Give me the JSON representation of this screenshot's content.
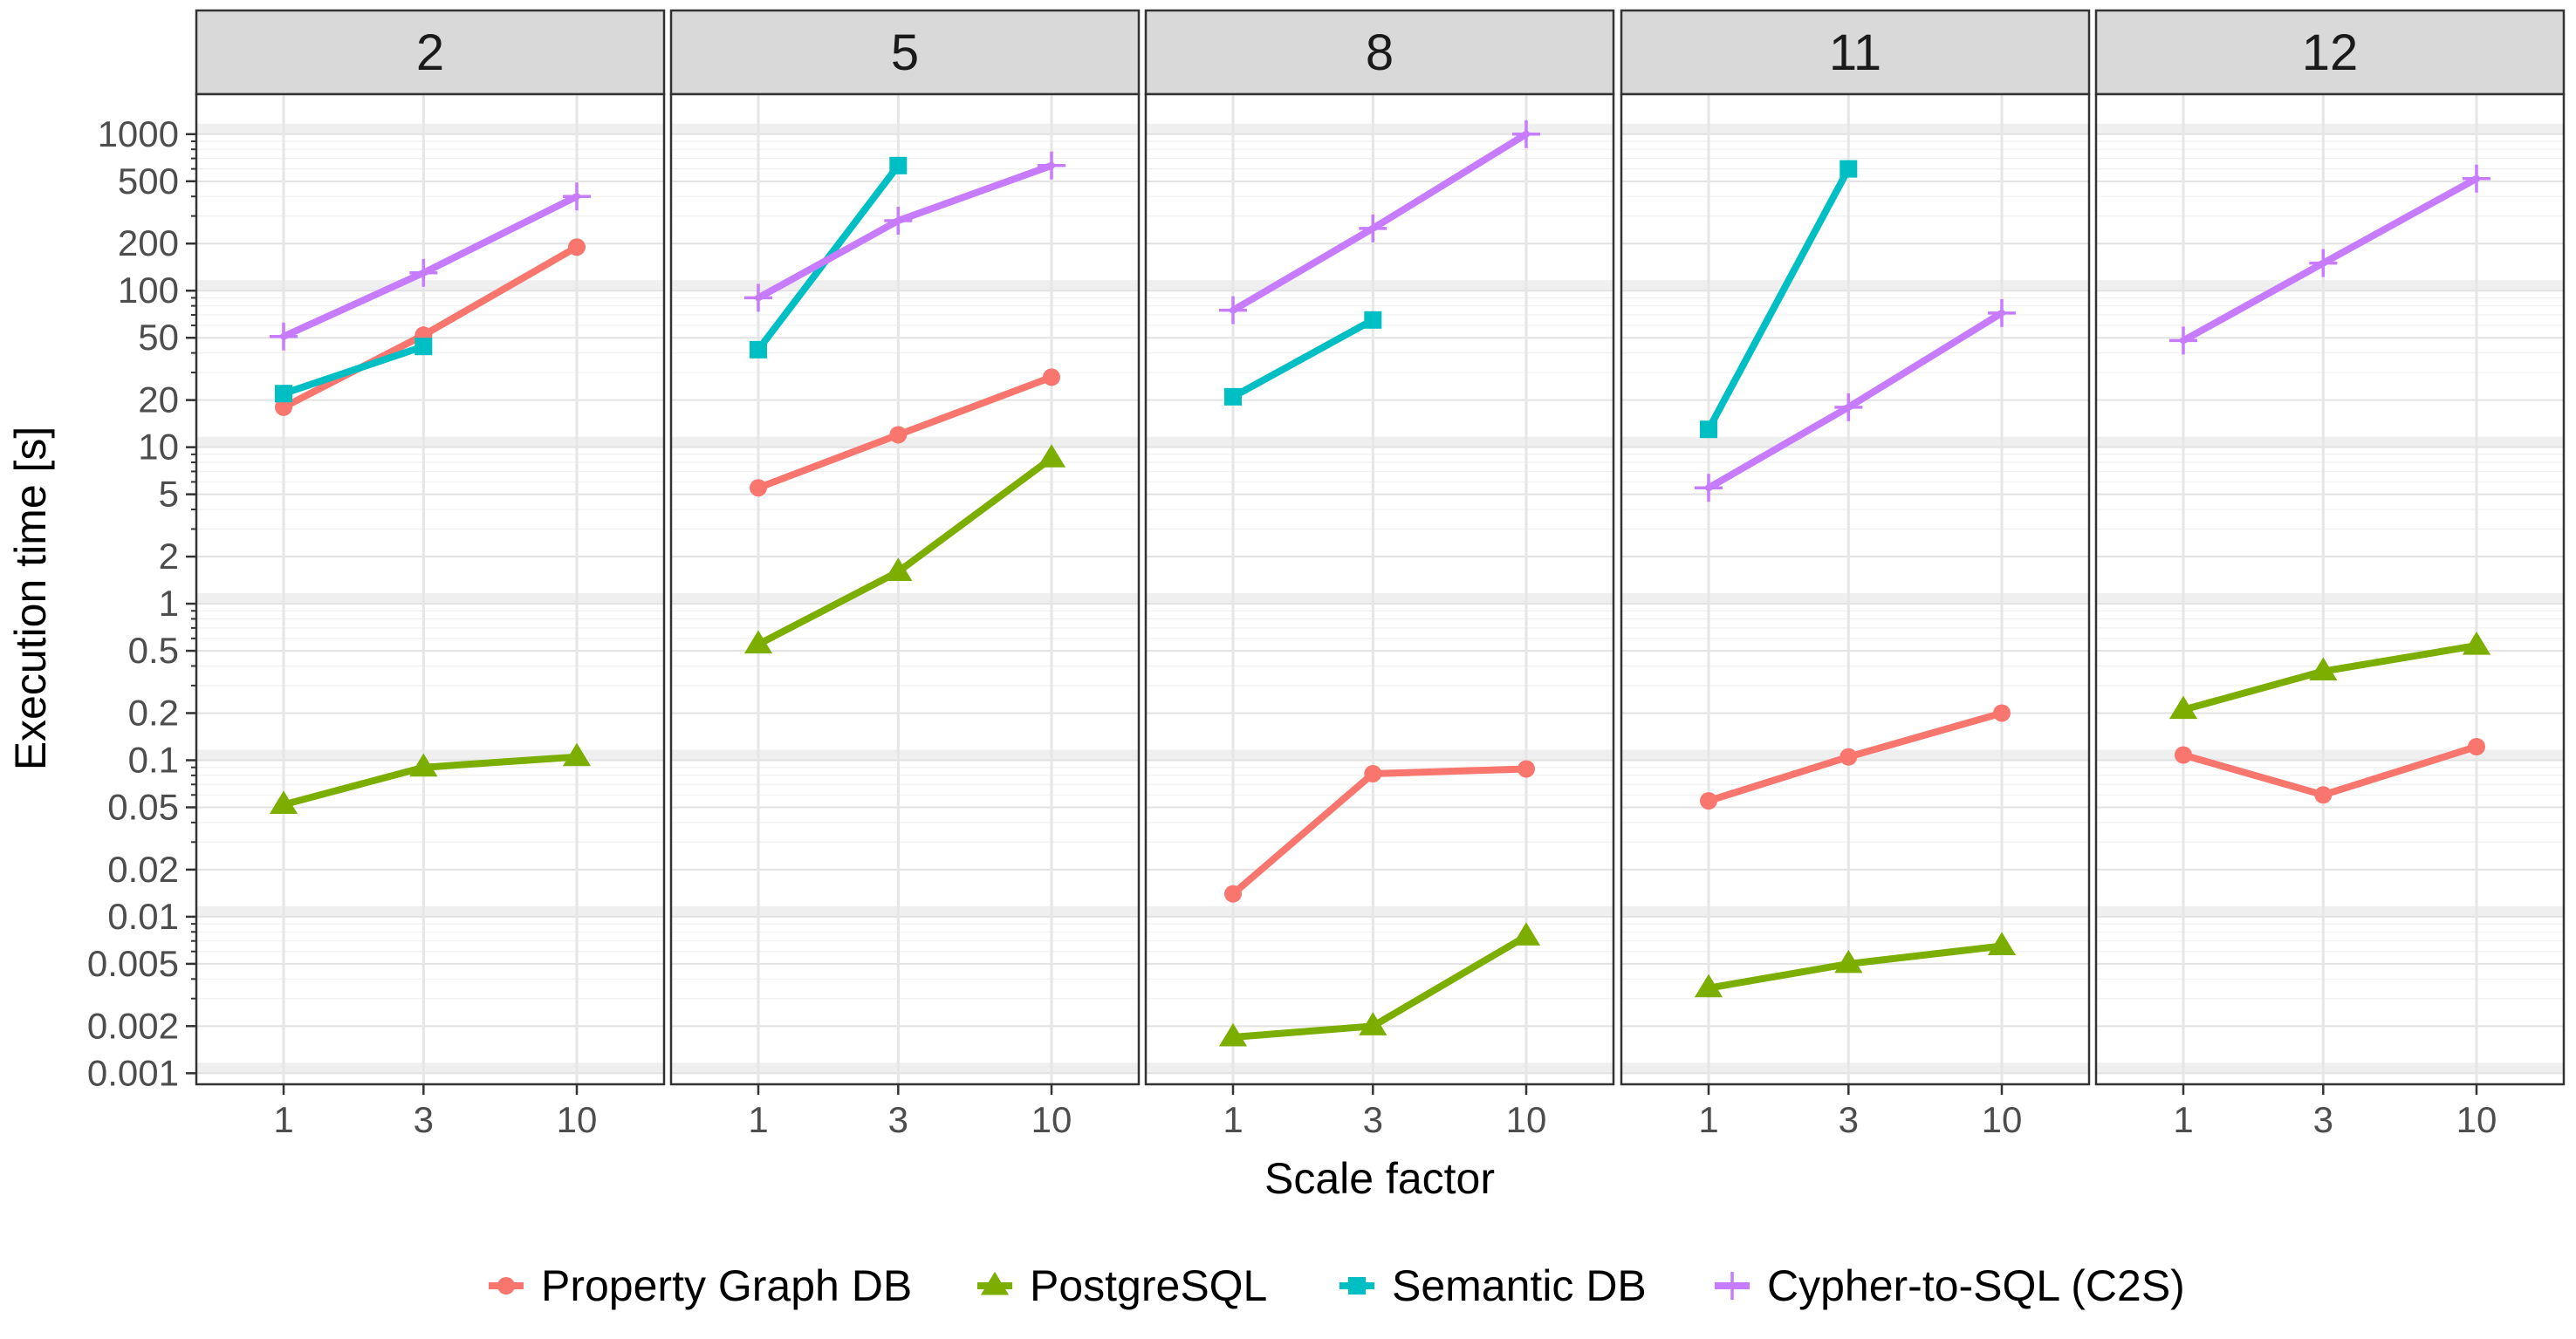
{
  "chart_data": {
    "type": "line",
    "xlabel": "Scale factor",
    "ylabel": "Execution time [s]",
    "x_ticks": [
      "1",
      "3",
      "10"
    ],
    "x_values": [
      1,
      3,
      10
    ],
    "y_scale": "log10",
    "ylim": [
      0.00085,
      1800
    ],
    "y_ticks": [
      "0.001",
      "0.002",
      "0.005",
      "0.01",
      "0.02",
      "0.05",
      "0.1",
      "0.2",
      "0.5",
      "1",
      "2",
      "5",
      "10",
      "20",
      "50",
      "100",
      "200",
      "500",
      "1000"
    ],
    "y_tick_values": [
      0.001,
      0.002,
      0.005,
      0.01,
      0.02,
      0.05,
      0.1,
      0.2,
      0.5,
      1,
      2,
      5,
      10,
      20,
      50,
      100,
      200,
      500,
      1000
    ],
    "grid": true,
    "legend_position": "bottom",
    "series_styles": [
      {
        "name": "Property Graph DB",
        "color": "#F8766D",
        "shape": "circle"
      },
      {
        "name": "PostgreSQL",
        "color": "#7CAE00",
        "shape": "triangle"
      },
      {
        "name": "Semantic DB",
        "color": "#00BFC4",
        "shape": "square"
      },
      {
        "name": "Cypher-to-SQL (C2S)",
        "color": "#C77CFF",
        "shape": "plus"
      }
    ],
    "facets": [
      {
        "label": "2",
        "series": [
          {
            "name": "Property Graph DB",
            "x": [
              1,
              3,
              10
            ],
            "y": [
              18,
              52,
              190
            ]
          },
          {
            "name": "PostgreSQL",
            "x": [
              1,
              3,
              10
            ],
            "y": [
              0.052,
              0.09,
              0.105
            ]
          },
          {
            "name": "Semantic DB",
            "x": [
              1,
              3
            ],
            "y": [
              22,
              44
            ]
          },
          {
            "name": "Cypher-to-SQL (C2S)",
            "x": [
              1,
              3,
              10
            ],
            "y": [
              51,
              130,
              400
            ]
          }
        ]
      },
      {
        "label": "5",
        "series": [
          {
            "name": "Property Graph DB",
            "x": [
              1,
              3,
              10
            ],
            "y": [
              5.5,
              12,
              28
            ]
          },
          {
            "name": "PostgreSQL",
            "x": [
              1,
              3,
              10
            ],
            "y": [
              0.55,
              1.6,
              8.5
            ]
          },
          {
            "name": "Semantic DB",
            "x": [
              1,
              3
            ],
            "y": [
              42,
              630
            ]
          },
          {
            "name": "Cypher-to-SQL (C2S)",
            "x": [
              1,
              3,
              10
            ],
            "y": [
              90,
              280,
              630
            ]
          }
        ]
      },
      {
        "label": "8",
        "series": [
          {
            "name": "Property Graph DB",
            "x": [
              1,
              3,
              10
            ],
            "y": [
              0.014,
              0.082,
              0.088
            ]
          },
          {
            "name": "PostgreSQL",
            "x": [
              1,
              3,
              10
            ],
            "y": [
              0.0017,
              0.002,
              0.0075
            ]
          },
          {
            "name": "Semantic DB",
            "x": [
              1,
              3
            ],
            "y": [
              21,
              65
            ]
          },
          {
            "name": "Cypher-to-SQL (C2S)",
            "x": [
              1,
              3,
              10
            ],
            "y": [
              75,
              250,
              1000
            ]
          }
        ]
      },
      {
        "label": "11",
        "series": [
          {
            "name": "Property Graph DB",
            "x": [
              1,
              3,
              10
            ],
            "y": [
              0.055,
              0.105,
              0.2
            ]
          },
          {
            "name": "PostgreSQL",
            "x": [
              1,
              3,
              10
            ],
            "y": [
              0.0035,
              0.005,
              0.0065
            ]
          },
          {
            "name": "Semantic DB",
            "x": [
              1,
              3
            ],
            "y": [
              13,
              600
            ]
          },
          {
            "name": "Cypher-to-SQL (C2S)",
            "x": [
              1,
              3,
              10
            ],
            "y": [
              5.5,
              18,
              72
            ]
          }
        ]
      },
      {
        "label": "12",
        "series": [
          {
            "name": "Property Graph DB",
            "x": [
              1,
              3,
              10
            ],
            "y": [
              0.108,
              0.06,
              0.122
            ]
          },
          {
            "name": "PostgreSQL",
            "x": [
              1,
              3,
              10
            ],
            "y": [
              0.21,
              0.37,
              0.54
            ]
          },
          {
            "name": "Cypher-to-SQL (C2S)",
            "x": [
              1,
              3,
              10
            ],
            "y": [
              48,
              150,
              520
            ]
          }
        ]
      }
    ]
  }
}
